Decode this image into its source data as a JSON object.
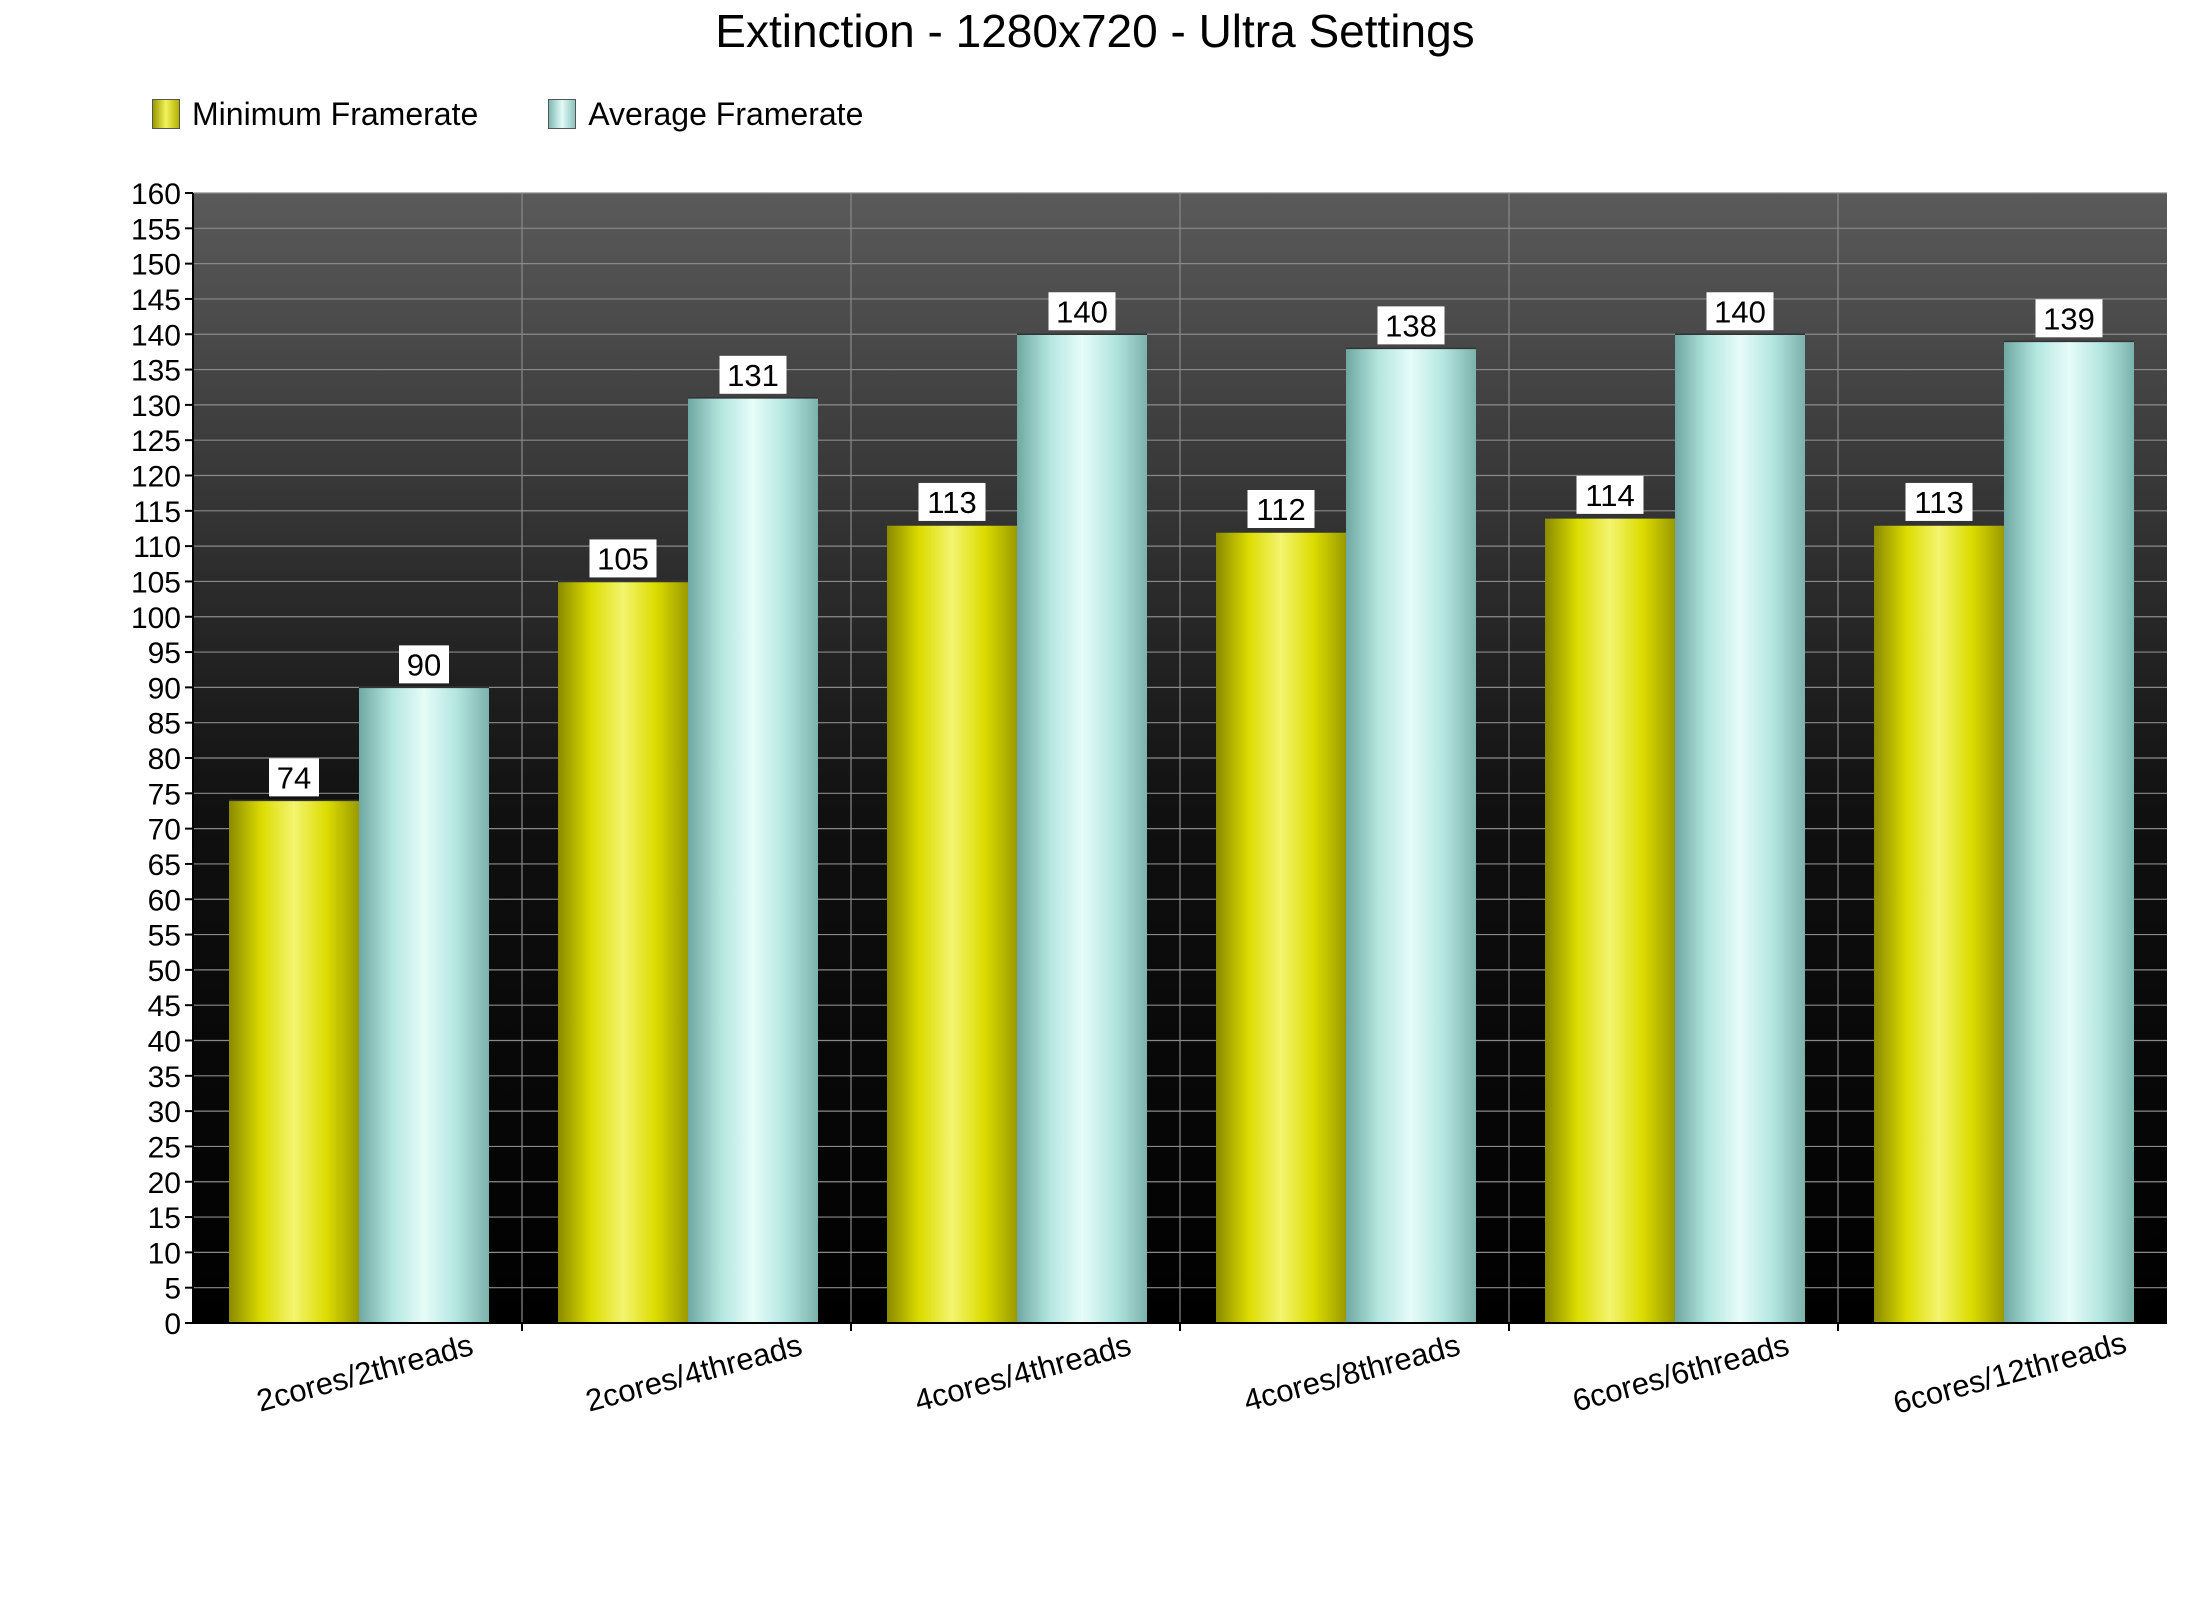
{
  "chart_data": {
    "type": "bar",
    "title": "Extinction - 1280x720 - Ultra Settings",
    "xlabel": "",
    "ylabel": "",
    "categories": [
      "2cores/2threads",
      "2cores/4threads",
      "4cores/4threads",
      "4cores/8threads",
      "6cores/6threads",
      "6cores/12threads"
    ],
    "series": [
      {
        "name": "Minimum Framerate",
        "values": [
          74,
          105,
          113,
          112,
          114,
          113
        ]
      },
      {
        "name": "Average Framerate",
        "values": [
          90,
          131,
          140,
          138,
          140,
          139
        ]
      }
    ],
    "ylim": [
      0,
      160
    ],
    "ytick_step": 5,
    "grid": true,
    "legend_position": "top-left",
    "data_labels": true
  },
  "colors": {
    "minimum_framerate": "#e0e000",
    "average_framerate": "#b8ece6",
    "plot_background_top": "#5a5a5a",
    "plot_background_bottom": "#000000",
    "gridline": "#8a8a8a"
  }
}
